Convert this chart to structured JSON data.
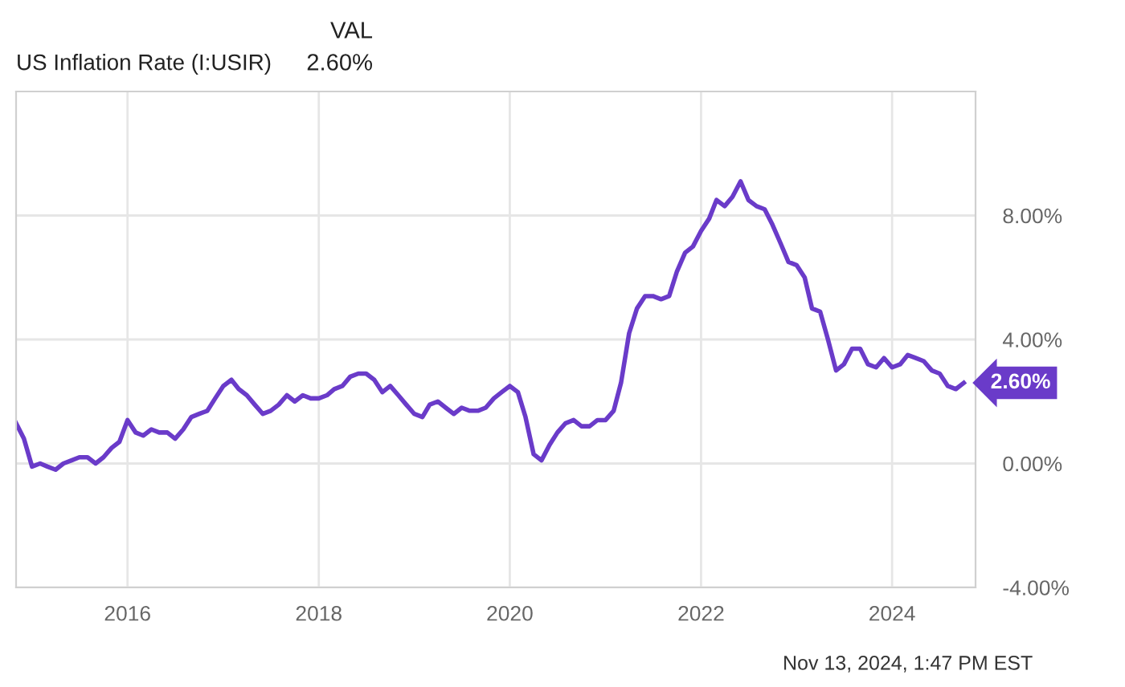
{
  "chart_data": {
    "type": "line",
    "title": "US Inflation Rate (I:USIR)",
    "x": [
      "2014-11",
      "2014-12",
      "2015-01",
      "2015-02",
      "2015-03",
      "2015-04",
      "2015-05",
      "2015-06",
      "2015-07",
      "2015-08",
      "2015-09",
      "2015-10",
      "2015-11",
      "2015-12",
      "2016-01",
      "2016-02",
      "2016-03",
      "2016-04",
      "2016-05",
      "2016-06",
      "2016-07",
      "2016-08",
      "2016-09",
      "2016-10",
      "2016-11",
      "2016-12",
      "2017-01",
      "2017-02",
      "2017-03",
      "2017-04",
      "2017-05",
      "2017-06",
      "2017-07",
      "2017-08",
      "2017-09",
      "2017-10",
      "2017-11",
      "2017-12",
      "2018-01",
      "2018-02",
      "2018-03",
      "2018-04",
      "2018-05",
      "2018-06",
      "2018-07",
      "2018-08",
      "2018-09",
      "2018-10",
      "2018-11",
      "2018-12",
      "2019-01",
      "2019-02",
      "2019-03",
      "2019-04",
      "2019-05",
      "2019-06",
      "2019-07",
      "2019-08",
      "2019-09",
      "2019-10",
      "2019-11",
      "2019-12",
      "2020-01",
      "2020-02",
      "2020-03",
      "2020-04",
      "2020-05",
      "2020-06",
      "2020-07",
      "2020-08",
      "2020-09",
      "2020-10",
      "2020-11",
      "2020-12",
      "2021-01",
      "2021-02",
      "2021-03",
      "2021-04",
      "2021-05",
      "2021-06",
      "2021-07",
      "2021-08",
      "2021-09",
      "2021-10",
      "2021-11",
      "2021-12",
      "2022-01",
      "2022-02",
      "2022-03",
      "2022-04",
      "2022-05",
      "2022-06",
      "2022-07",
      "2022-08",
      "2022-09",
      "2022-10",
      "2022-11",
      "2022-12",
      "2023-01",
      "2023-02",
      "2023-03",
      "2023-04",
      "2023-05",
      "2023-06",
      "2023-07",
      "2023-08",
      "2023-09",
      "2023-10",
      "2023-11",
      "2023-12",
      "2024-01",
      "2024-02",
      "2024-03",
      "2024-04",
      "2024-05",
      "2024-06",
      "2024-07",
      "2024-08",
      "2024-09",
      "2024-10"
    ],
    "series": [
      {
        "color": "#6a3bc9",
        "values": [
          1.3,
          0.8,
          -0.1,
          0.0,
          -0.1,
          -0.2,
          0.0,
          0.1,
          0.2,
          0.2,
          0.0,
          0.2,
          0.5,
          0.7,
          1.4,
          1.0,
          0.9,
          1.1,
          1.0,
          1.0,
          0.8,
          1.1,
          1.5,
          1.6,
          1.7,
          2.1,
          2.5,
          2.7,
          2.4,
          2.2,
          1.9,
          1.6,
          1.7,
          1.9,
          2.2,
          2.0,
          2.2,
          2.1,
          2.1,
          2.2,
          2.4,
          2.5,
          2.8,
          2.9,
          2.9,
          2.7,
          2.3,
          2.5,
          2.2,
          1.9,
          1.6,
          1.5,
          1.9,
          2.0,
          1.8,
          1.6,
          1.8,
          1.7,
          1.7,
          1.8,
          2.1,
          2.3,
          2.5,
          2.3,
          1.5,
          0.3,
          0.1,
          0.6,
          1.0,
          1.3,
          1.4,
          1.2,
          1.2,
          1.4,
          1.4,
          1.7,
          2.6,
          4.2,
          5.0,
          5.4,
          5.4,
          5.3,
          5.4,
          6.2,
          6.8,
          7.0,
          7.5,
          7.9,
          8.5,
          8.3,
          8.6,
          9.1,
          8.5,
          8.3,
          8.2,
          7.7,
          7.1,
          6.5,
          6.4,
          6.0,
          5.0,
          4.9,
          4.0,
          3.0,
          3.2,
          3.7,
          3.7,
          3.2,
          3.1,
          3.4,
          3.1,
          3.2,
          3.5,
          3.4,
          3.3,
          3.0,
          2.9,
          2.5,
          2.4,
          2.6
        ]
      }
    ],
    "xlim": [
      "2014-11-01",
      "2024-11-15"
    ],
    "xticks": [
      {
        "value": "2016",
        "label": "2016"
      },
      {
        "value": "2018",
        "label": "2018"
      },
      {
        "value": "2020",
        "label": "2020"
      },
      {
        "value": "2022",
        "label": "2022"
      },
      {
        "value": "2024",
        "label": "2024"
      }
    ],
    "ylim": [
      -4,
      12
    ],
    "yticks": [
      {
        "value": -4,
        "label": "-4.00%"
      },
      {
        "value": 0,
        "label": "0.00%"
      },
      {
        "value": 4,
        "label": "4.00%"
      },
      {
        "value": 8,
        "label": "8.00%"
      }
    ],
    "grid": true,
    "legend": false,
    "annotations": [
      "VAL",
      "2.60%",
      "Nov 13, 2024, 1:47 PM EST",
      {
        "text": "2.60%",
        "x": "2024-10",
        "y": 2.6
      }
    ]
  }
}
